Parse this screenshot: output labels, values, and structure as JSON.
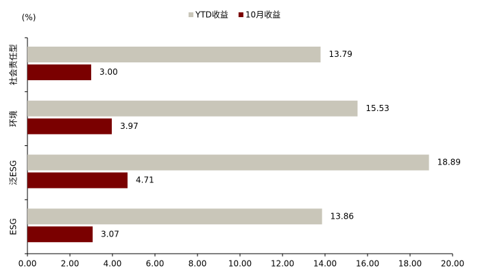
{
  "chart_data": {
    "type": "hbar",
    "unit_label": "(%)",
    "categories": [
      "社会责任型",
      "环境",
      "泛ESG",
      "ESG"
    ],
    "series": [
      {
        "name": "YTD收益",
        "color": "#c9c6b9",
        "values": [
          13.79,
          15.53,
          18.89,
          13.86
        ],
        "value_labels": [
          "13.79",
          "15.53",
          "18.89",
          "13.86"
        ]
      },
      {
        "name": "10月收益",
        "color": "#7a0000",
        "values": [
          3.0,
          3.97,
          4.71,
          3.07
        ],
        "value_labels": [
          "3.00",
          "3.97",
          "4.71",
          "3.07"
        ]
      }
    ],
    "xlim": [
      0,
      20
    ],
    "xticks": [
      {
        "value": 0,
        "label": "0.00"
      },
      {
        "value": 2,
        "label": "2.00"
      },
      {
        "value": 4,
        "label": "4.00"
      },
      {
        "value": 6,
        "label": "6.00"
      },
      {
        "value": 8,
        "label": "8.00"
      },
      {
        "value": 10,
        "label": "10.00"
      },
      {
        "value": 12,
        "label": "12.00"
      },
      {
        "value": 14,
        "label": "14.00"
      },
      {
        "value": 16,
        "label": "16.00"
      },
      {
        "value": 18,
        "label": "18.00"
      },
      {
        "value": 20,
        "label": "20.00"
      }
    ],
    "legend": "top"
  }
}
